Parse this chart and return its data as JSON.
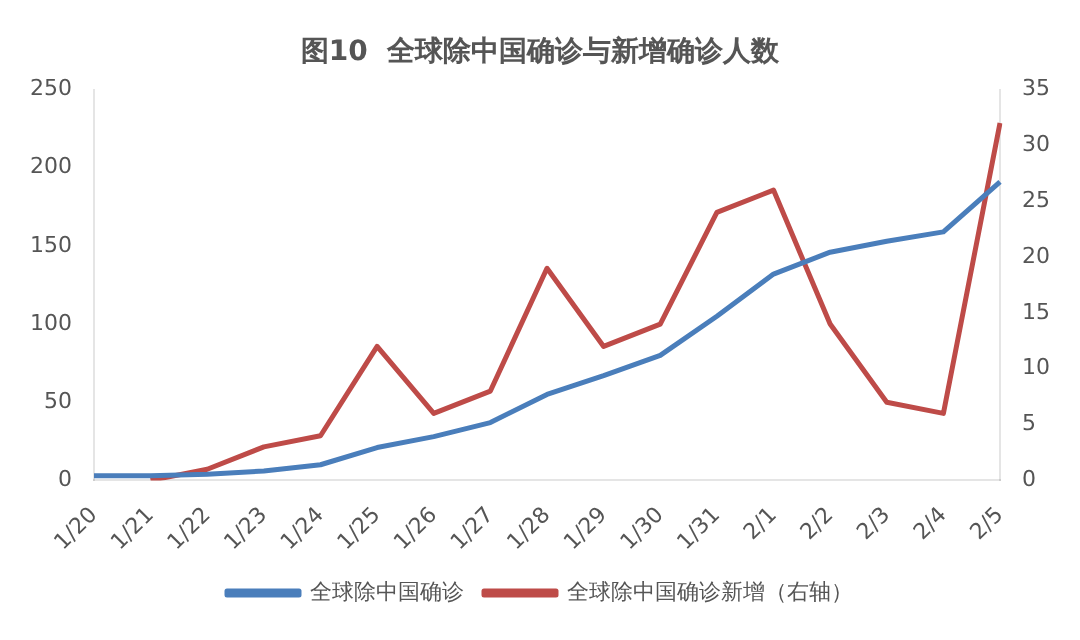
{
  "chart_data": {
    "type": "line",
    "title": "图10  全球除中国确诊与新增确诊人数",
    "categories": [
      "1/20",
      "1/21",
      "1/22",
      "1/23",
      "1/24",
      "1/25",
      "1/26",
      "1/27",
      "1/28",
      "1/29",
      "1/30",
      "1/31",
      "2/1",
      "2/2",
      "2/3",
      "2/4",
      "2/5"
    ],
    "series": [
      {
        "name": "全球除中国确诊",
        "color": "#4a7ebb",
        "values": [
          3,
          3,
          4,
          6,
          10,
          21,
          28,
          37,
          55,
          67,
          80,
          105,
          132,
          146,
          153,
          159,
          191
        ]
      },
      {
        "name": "全球除中国确诊新增（右轴）",
        "color": "#be4b48",
        "axis": "y2",
        "values": [
          null,
          0,
          1,
          3,
          4,
          12,
          6,
          8,
          19,
          12,
          14,
          24,
          26,
          14,
          7,
          6,
          32
        ]
      }
    ],
    "ylim": [
      0,
      250
    ],
    "yticks": [
      0,
      50,
      100,
      150,
      200,
      250
    ],
    "y2lim": [
      0,
      35
    ],
    "y2ticks": [
      0,
      5,
      10,
      15,
      20,
      25,
      30,
      35
    ],
    "grid": false,
    "legend": "bottom",
    "marker": "none",
    "line_style": "solid"
  }
}
